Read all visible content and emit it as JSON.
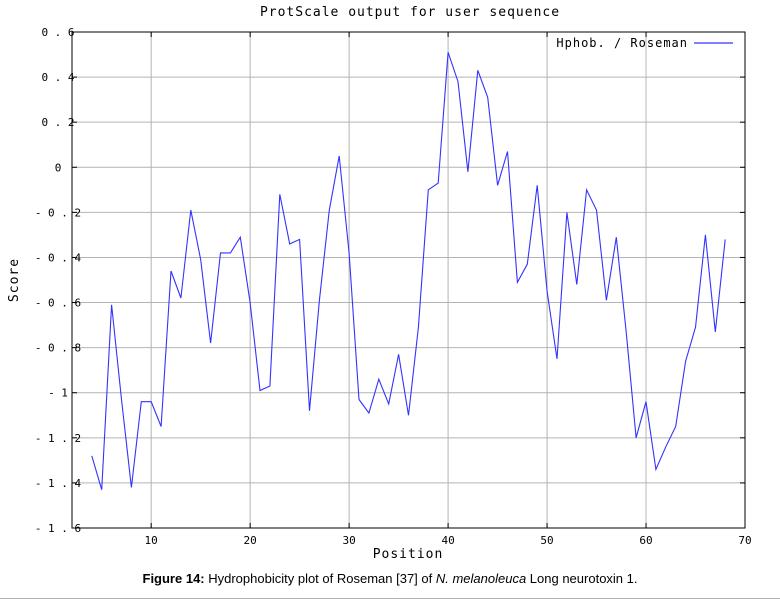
{
  "chart_data": {
    "type": "line",
    "title": "ProtScale output for user sequence",
    "xlabel": "Position",
    "ylabel": "Score",
    "xlim": [
      2,
      70
    ],
    "ylim": [
      -1.6,
      0.6
    ],
    "xticks": [
      10,
      20,
      30,
      40,
      50,
      60,
      70
    ],
    "yticks": [
      0.6,
      0.4,
      0.2,
      0,
      -0.2,
      -0.4,
      -0.6,
      -0.8,
      -1,
      -1.2,
      -1.4,
      -1.6
    ],
    "ytick_labels": [
      "0 . 6",
      "0 . 4",
      "0 . 2",
      "0",
      "- 0 . 2",
      "- 0 . 4",
      "- 0 . 6",
      "- 0 . 8",
      "- 1",
      "- 1 . 2",
      "- 1 . 4",
      "- 1 . 6"
    ],
    "grid": true,
    "legend": "top-right",
    "series": [
      {
        "name": "Hphob. / Roseman",
        "color": "#3333ff",
        "x": [
          4,
          5,
          6,
          7,
          8,
          9,
          10,
          11,
          12,
          13,
          14,
          15,
          16,
          17,
          18,
          19,
          20,
          21,
          22,
          23,
          24,
          25,
          26,
          27,
          28,
          29,
          30,
          31,
          32,
          33,
          34,
          35,
          36,
          37,
          38,
          39,
          40,
          41,
          42,
          43,
          44,
          45,
          46,
          47,
          48,
          49,
          50,
          51,
          52,
          53,
          54,
          55,
          56,
          57,
          58,
          59,
          60,
          61,
          62,
          63,
          64,
          65,
          66,
          67,
          68
        ],
        "y": [
          -1.28,
          -1.43,
          -0.61,
          -1.03,
          -1.42,
          -1.04,
          -1.04,
          -1.15,
          -0.46,
          -0.58,
          -0.19,
          -0.41,
          -0.78,
          -0.38,
          -0.38,
          -0.31,
          -0.6,
          -0.99,
          -0.97,
          -0.12,
          -0.34,
          -0.32,
          -1.08,
          -0.59,
          -0.19,
          0.05,
          -0.38,
          -1.03,
          -1.09,
          -0.94,
          -1.05,
          -0.83,
          -1.1,
          -0.71,
          -0.1,
          -0.07,
          0.51,
          0.38,
          -0.02,
          0.43,
          0.31,
          -0.08,
          0.07,
          -0.51,
          -0.43,
          -0.08,
          -0.55,
          -0.85,
          -0.2,
          -0.52,
          -0.1,
          -0.19,
          -0.59,
          -0.31,
          -0.73,
          -1.2,
          -1.04,
          -1.34,
          -1.24,
          -1.15,
          -0.86,
          -0.71,
          -0.3,
          -0.73,
          -0.32
        ]
      }
    ]
  },
  "caption": {
    "label": "Figure 14:",
    "text_before": " Hydrophobicity plot of Roseman [37] of ",
    "italic": "N. melanoleuca",
    "text_after": " Long neurotoxin 1."
  }
}
